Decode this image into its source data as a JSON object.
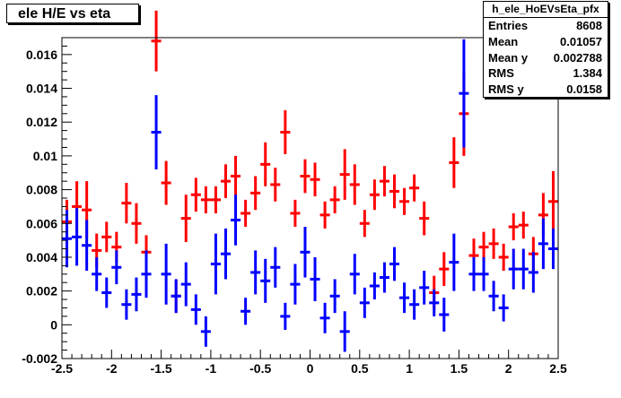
{
  "title": "ele H/E vs eta",
  "stats": {
    "name": "h_ele_HoEVsEta_pfx",
    "rows": [
      {
        "label": "Entries",
        "value": "8608"
      },
      {
        "label": "Mean",
        "value": "0.01057"
      },
      {
        "label": "Mean y",
        "value": "0.002788"
      },
      {
        "label": "RMS",
        "value": "1.384"
      },
      {
        "label": "RMS y",
        "value": "0.0158"
      }
    ]
  },
  "chart_data": {
    "type": "scatter",
    "title": "ele H/E vs eta",
    "xlim": [
      -2.5,
      2.5
    ],
    "ylim": [
      -0.002,
      0.017
    ],
    "xticks": [
      -2.5,
      -2,
      -1.5,
      -1,
      -0.5,
      0,
      0.5,
      1,
      1.5,
      2,
      2.5
    ],
    "xtick_labels": [
      "-2.5",
      "-2",
      "-1.5",
      "-1",
      "-0.5",
      "0",
      "0.5",
      "1",
      "1.5",
      "2",
      "2.5"
    ],
    "yticks": [
      -0.002,
      0,
      0.002,
      0.004,
      0.006,
      0.008,
      0.01,
      0.012,
      0.014,
      0.016
    ],
    "ytick_labels": [
      "-0.002",
      "0",
      "0.002",
      "0.004",
      "0.006",
      "0.008",
      "0.01",
      "0.012",
      "0.014",
      "0.016"
    ],
    "bin_halfwidth": 0.05,
    "series": [
      {
        "color": "#ff0000",
        "points": [
          [
            -2.45,
            0.0061,
            0.0013
          ],
          [
            -2.35,
            0.007,
            0.0015
          ],
          [
            -2.25,
            0.0068,
            0.0017
          ],
          [
            -2.15,
            0.0044,
            0.001
          ],
          [
            -2.05,
            0.0052,
            0.0009
          ],
          [
            -1.95,
            0.0046,
            0.0009
          ],
          [
            -1.85,
            0.0072,
            0.0012
          ],
          [
            -1.75,
            0.006,
            0.0012
          ],
          [
            -1.65,
            0.0043,
            0.001
          ],
          [
            -1.55,
            0.0168,
            0.0018
          ],
          [
            -1.45,
            0.0084,
            0.0013
          ],
          [
            -1.35,
            0.0017,
            0.001
          ],
          [
            -1.25,
            0.0063,
            0.0014
          ],
          [
            -1.15,
            0.0077,
            0.001
          ],
          [
            -1.05,
            0.0074,
            0.0008
          ],
          [
            -0.95,
            0.0074,
            0.0008
          ],
          [
            -0.85,
            0.0085,
            0.001
          ],
          [
            -0.75,
            0.0088,
            0.0012
          ],
          [
            -0.65,
            0.0066,
            0.0008
          ],
          [
            -0.55,
            0.0078,
            0.001
          ],
          [
            -0.45,
            0.0095,
            0.0013
          ],
          [
            -0.35,
            0.0083,
            0.001
          ],
          [
            -0.25,
            0.0114,
            0.0013
          ],
          [
            -0.15,
            0.0066,
            0.0008
          ],
          [
            -0.05,
            0.0088,
            0.001
          ],
          [
            0.05,
            0.0086,
            0.001
          ],
          [
            0.15,
            0.0065,
            0.0008
          ],
          [
            0.25,
            0.0074,
            0.0008
          ],
          [
            0.35,
            0.0089,
            0.0015
          ],
          [
            0.45,
            0.0083,
            0.0012
          ],
          [
            0.55,
            0.006,
            0.0008
          ],
          [
            0.65,
            0.0077,
            0.0009
          ],
          [
            0.75,
            0.0085,
            0.0009
          ],
          [
            0.85,
            0.0079,
            0.001
          ],
          [
            0.95,
            0.0073,
            0.0008
          ],
          [
            1.05,
            0.0081,
            0.0008
          ],
          [
            1.15,
            0.0063,
            0.001
          ],
          [
            1.25,
            0.0019,
            0.001
          ],
          [
            1.35,
            0.0033,
            0.001
          ],
          [
            1.45,
            0.0096,
            0.0015
          ],
          [
            1.55,
            0.0125,
            0.0025
          ],
          [
            1.65,
            0.0041,
            0.001
          ],
          [
            1.75,
            0.0046,
            0.0009
          ],
          [
            1.85,
            0.0048,
            0.0009
          ],
          [
            1.95,
            0.004,
            0.0008
          ],
          [
            2.05,
            0.0058,
            0.0008
          ],
          [
            2.15,
            0.0059,
            0.0008
          ],
          [
            2.25,
            0.0042,
            0.001
          ],
          [
            2.35,
            0.0065,
            0.0013
          ],
          [
            2.45,
            0.0073,
            0.0018
          ]
        ]
      },
      {
        "color": "#0000ff",
        "points": [
          [
            -2.45,
            0.0051,
            0.0017
          ],
          [
            -2.35,
            0.0052,
            0.0017
          ],
          [
            -2.25,
            0.0047,
            0.0015
          ],
          [
            -2.15,
            0.003,
            0.001
          ],
          [
            -2.05,
            0.0019,
            0.0009
          ],
          [
            -1.95,
            0.0034,
            0.001
          ],
          [
            -1.85,
            0.0012,
            0.0009
          ],
          [
            -1.75,
            0.0018,
            0.001
          ],
          [
            -1.65,
            0.003,
            0.0014
          ],
          [
            -1.55,
            0.0114,
            0.0022
          ],
          [
            -1.45,
            0.003,
            0.0018
          ],
          [
            -1.35,
            0.0017,
            0.001
          ],
          [
            -1.25,
            0.0024,
            0.0013
          ],
          [
            -1.15,
            0.0009,
            0.0009
          ],
          [
            -1.05,
            -0.0004,
            0.0009
          ],
          [
            -0.95,
            0.0036,
            0.0018
          ],
          [
            -0.85,
            0.0042,
            0.0015
          ],
          [
            -0.75,
            0.0062,
            0.0015
          ],
          [
            -0.65,
            0.0008,
            0.0008
          ],
          [
            -0.55,
            0.0031,
            0.0013
          ],
          [
            -0.45,
            0.0026,
            0.0013
          ],
          [
            -0.35,
            0.0034,
            0.0012
          ],
          [
            -0.25,
            0.0005,
            0.0008
          ],
          [
            -0.15,
            0.0024,
            0.0012
          ],
          [
            -0.05,
            0.0043,
            0.0015
          ],
          [
            0.05,
            0.0027,
            0.0013
          ],
          [
            0.15,
            0.0004,
            0.0009
          ],
          [
            0.25,
            0.0017,
            0.001
          ],
          [
            0.35,
            -0.0004,
            0.0012
          ],
          [
            0.45,
            0.003,
            0.0012
          ],
          [
            0.55,
            0.0013,
            0.0009
          ],
          [
            0.65,
            0.0023,
            0.0008
          ],
          [
            0.75,
            0.0028,
            0.0009
          ],
          [
            0.85,
            0.0036,
            0.001
          ],
          [
            0.95,
            0.0016,
            0.0009
          ],
          [
            1.05,
            0.0012,
            0.0009
          ],
          [
            1.15,
            0.0022,
            0.001
          ],
          [
            1.25,
            0.0013,
            0.0008
          ],
          [
            1.35,
            0.0006,
            0.001
          ],
          [
            1.45,
            0.0037,
            0.0017
          ],
          [
            1.55,
            0.0137,
            0.0032
          ],
          [
            1.65,
            0.003,
            0.001
          ],
          [
            1.75,
            0.003,
            0.001
          ],
          [
            1.85,
            0.0017,
            0.0009
          ],
          [
            1.95,
            0.001,
            0.0008
          ],
          [
            2.05,
            0.0033,
            0.0012
          ],
          [
            2.15,
            0.0033,
            0.0012
          ],
          [
            2.25,
            0.0031,
            0.0012
          ],
          [
            2.35,
            0.0048,
            0.0015
          ],
          [
            2.45,
            0.0045,
            0.0012
          ]
        ]
      }
    ]
  }
}
